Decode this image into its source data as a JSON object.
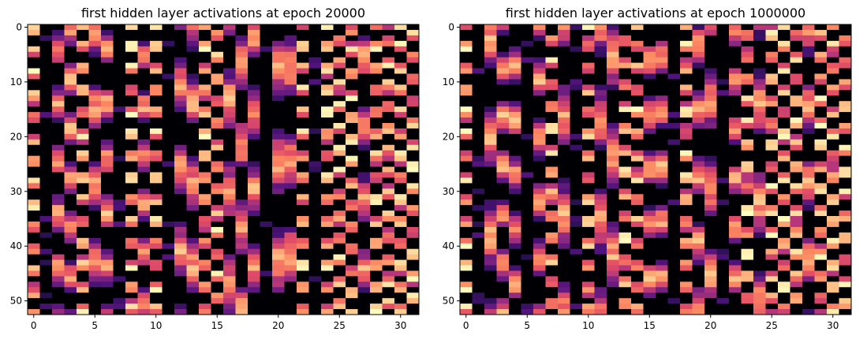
{
  "chart_data": [
    {
      "type": "heatmap",
      "title": "first hidden layer activations at epoch 20000",
      "xlabel": "",
      "ylabel": "",
      "colormap": "magma",
      "value_range": [
        0,
        1
      ],
      "rows": 53,
      "cols": 32,
      "xlim": [
        -0.5,
        31.5
      ],
      "ylim": [
        52.5,
        -0.5
      ],
      "x_ticks": [
        0,
        5,
        10,
        15,
        20,
        25,
        30
      ],
      "y_ticks": [
        0,
        10,
        20,
        30,
        40,
        50
      ],
      "column_pattern": "early",
      "grid": false,
      "colors": {
        "background": "#000004",
        "dark_purple": "#3b0f70",
        "magenta": "#b73779",
        "orange": "#fc8961",
        "pale_yellow": "#fcfdbf"
      }
    },
    {
      "type": "heatmap",
      "title": "first hidden layer activations at epoch 1000000",
      "xlabel": "",
      "ylabel": "",
      "colormap": "magma",
      "value_range": [
        0,
        1
      ],
      "rows": 53,
      "cols": 32,
      "xlim": [
        -0.5,
        31.5
      ],
      "ylim": [
        52.5,
        -0.5
      ],
      "x_ticks": [
        0,
        5,
        10,
        15,
        20,
        25,
        30
      ],
      "y_ticks": [
        0,
        10,
        20,
        30,
        40,
        50
      ],
      "column_pattern": "late",
      "grid": false,
      "colors": {
        "background": "#000004",
        "dark_purple": "#3b0f70",
        "magenta": "#b73779",
        "orange": "#fc8961",
        "pale_yellow": "#fcfdbf"
      }
    }
  ]
}
